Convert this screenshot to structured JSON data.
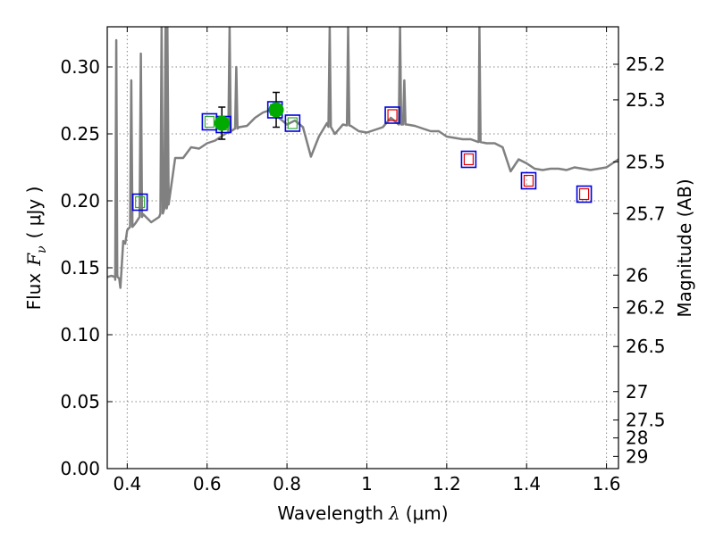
{
  "chart_data": {
    "type": "scatter",
    "title": "",
    "xlabel_prefix": "Wavelength",
    "xlabel_symbol": "λ",
    "xlabel_unit": "(μm)",
    "ylabel_prefix": "Flux",
    "ylabel_symbol": "F",
    "ylabel_subscript": "ν",
    "ylabel_unit": "( μJy )",
    "y2label": "Magnitude (AB)",
    "xlim": [
      0.35,
      1.63
    ],
    "ylim": [
      0.0,
      0.33
    ],
    "grid": true,
    "xticks": [
      0.4,
      0.6,
      0.8,
      1.0,
      1.2,
      1.4,
      1.6
    ],
    "xtick_labels": [
      "0.4",
      "0.6",
      "0.8",
      "1",
      "1.2",
      "1.4",
      "1.6"
    ],
    "yticks": [
      0.0,
      0.05,
      0.1,
      0.15,
      0.2,
      0.25,
      0.3
    ],
    "ytick_labels": [
      "0.00",
      "0.05",
      "0.10",
      "0.15",
      "0.20",
      "0.25",
      "0.30"
    ],
    "mag_ticks": [
      {
        "flux": 0.302,
        "label": "25.2"
      },
      {
        "flux": 0.2754,
        "label": "25.3"
      },
      {
        "flux": 0.2291,
        "label": "25.5"
      },
      {
        "flux": 0.1905,
        "label": "25.7"
      },
      {
        "flux": 0.1445,
        "label": "26"
      },
      {
        "flux": 0.1202,
        "label": "26.2"
      },
      {
        "flux": 0.0912,
        "label": "26.5"
      },
      {
        "flux": 0.0575,
        "label": "27"
      },
      {
        "flux": 0.0363,
        "label": "27.5"
      },
      {
        "flux": 0.0229,
        "label": "28"
      },
      {
        "flux": 0.0091,
        "label": "29"
      }
    ],
    "colors": {
      "sed": "#808080",
      "observed": "#00aa00",
      "errorbar": "#000000",
      "model_box": "#0000dd",
      "optical_inner": "#33aa33",
      "ir_inner": "#dd0000",
      "grid": "#888888"
    },
    "sed_model": {
      "name": "",
      "x": [
        0.35,
        0.36,
        0.37,
        0.375,
        0.38,
        0.383,
        0.386,
        0.39,
        0.395,
        0.4,
        0.42,
        0.44,
        0.46,
        0.48,
        0.5,
        0.52,
        0.54,
        0.56,
        0.58,
        0.6,
        0.62,
        0.64,
        0.66,
        0.68,
        0.7,
        0.72,
        0.74,
        0.76,
        0.78,
        0.8,
        0.82,
        0.84,
        0.86,
        0.88,
        0.9,
        0.92,
        0.94,
        0.96,
        0.98,
        1.0,
        1.02,
        1.04,
        1.06,
        1.08,
        1.1,
        1.12,
        1.14,
        1.16,
        1.18,
        1.2,
        1.22,
        1.24,
        1.26,
        1.28,
        1.3,
        1.32,
        1.34,
        1.36,
        1.38,
        1.4,
        1.42,
        1.44,
        1.46,
        1.48,
        1.5,
        1.52,
        1.54,
        1.56,
        1.58,
        1.6,
        1.63
      ],
      "y": [
        0.143,
        0.144,
        0.141,
        0.145,
        0.142,
        0.135,
        0.15,
        0.17,
        0.168,
        0.178,
        0.183,
        0.19,
        0.184,
        0.188,
        0.196,
        0.232,
        0.232,
        0.24,
        0.239,
        0.243,
        0.245,
        0.249,
        0.252,
        0.255,
        0.256,
        0.262,
        0.266,
        0.268,
        0.262,
        0.257,
        0.26,
        0.255,
        0.233,
        0.248,
        0.258,
        0.25,
        0.257,
        0.256,
        0.252,
        0.251,
        0.253,
        0.255,
        0.262,
        0.257,
        0.257,
        0.256,
        0.254,
        0.252,
        0.252,
        0.248,
        0.247,
        0.246,
        0.246,
        0.244,
        0.243,
        0.243,
        0.24,
        0.222,
        0.231,
        0.228,
        0.224,
        0.223,
        0.224,
        0.224,
        0.223,
        0.225,
        0.224,
        0.223,
        0.224,
        0.225,
        0.231
      ]
    },
    "emission_lines": [
      {
        "x": 0.3727,
        "peak": 0.32
      },
      {
        "x": 0.4101,
        "peak": 0.29
      },
      {
        "x": 0.4341,
        "peak": 0.31
      },
      {
        "x": 0.4861,
        "peak": 0.33
      },
      {
        "x": 0.4959,
        "peak": 0.33
      },
      {
        "x": 0.5007,
        "peak": 0.33
      },
      {
        "x": 0.6563,
        "peak": 0.33
      },
      {
        "x": 0.6731,
        "peak": 0.3
      },
      {
        "x": 0.9069,
        "peak": 0.33
      },
      {
        "x": 0.9531,
        "peak": 0.33
      },
      {
        "x": 1.083,
        "peak": 0.33
      },
      {
        "x": 1.2818,
        "peak": 0.33
      },
      {
        "x": 1.0938,
        "peak": 0.29
      }
    ],
    "observed_points": [
      {
        "x": 0.637,
        "y": 0.258,
        "err": 0.012
      },
      {
        "x": 0.773,
        "y": 0.268,
        "err": 0.013
      }
    ],
    "model_photometry_optical": [
      {
        "x": 0.432,
        "y": 0.199
      },
      {
        "x": 0.606,
        "y": 0.259
      },
      {
        "x": 0.641,
        "y": 0.257
      },
      {
        "x": 0.77,
        "y": 0.268
      },
      {
        "x": 0.814,
        "y": 0.258
      }
    ],
    "model_photometry_ir": [
      {
        "x": 1.064,
        "y": 0.264
      },
      {
        "x": 1.255,
        "y": 0.231
      },
      {
        "x": 1.405,
        "y": 0.215
      },
      {
        "x": 1.544,
        "y": 0.205
      }
    ]
  }
}
